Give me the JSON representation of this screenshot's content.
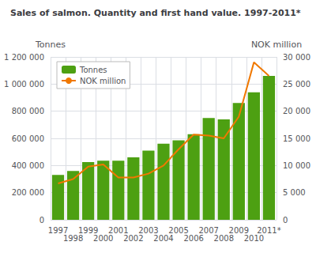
{
  "chart_data": {
    "type": "bar",
    "title": "Sales of salmon. Quantity and first hand value. 1997-2011*",
    "ylabel": "Tonnes",
    "y2label": "NOK million",
    "categories": [
      "1997",
      "1998",
      "1999",
      "2000",
      "2001",
      "2002",
      "2003",
      "2004",
      "2005",
      "2006",
      "2007",
      "2008",
      "2009",
      "2010",
      "2011*"
    ],
    "series": [
      {
        "name": "Tonnes",
        "type": "bar",
        "color": "#4da012",
        "values": [
          330000,
          360000,
          425000,
          435000,
          435000,
          460000,
          510000,
          560000,
          585000,
          630000,
          750000,
          740000,
          860000,
          940000,
          1060000
        ]
      },
      {
        "name": "NOK million",
        "type": "line",
        "color": "#f07800",
        "axis": "y2",
        "values": [
          6700,
          7500,
          9800,
          10200,
          7800,
          7800,
          8500,
          10000,
          13000,
          15700,
          15500,
          15000,
          19000,
          29000,
          26500
        ]
      }
    ],
    "ylim": [
      0,
      1200000
    ],
    "yticks": [
      0,
      {
        "value": 200000,
        "label": "200 000"
      },
      {
        "value": 400000,
        "label": "400 000"
      },
      {
        "value": 600000,
        "label": "600 000"
      },
      {
        "value": 800000,
        "label": "800 000"
      },
      {
        "value": 1000000,
        "label": "1 000 000"
      },
      {
        "value": 1200000,
        "label": "1 200 000"
      }
    ],
    "y2lim": [
      0,
      30000
    ],
    "y2ticks": [
      0,
      {
        "value": 5000,
        "label": "5 000"
      },
      {
        "value": 10000,
        "label": "10 000"
      },
      {
        "value": 15000,
        "label": "15 000"
      },
      {
        "value": 20000,
        "label": "20 000"
      },
      {
        "value": 25000,
        "label": "25 000"
      },
      {
        "value": 30000,
        "label": "30 000"
      }
    ],
    "grid": true,
    "legend": "upper left"
  }
}
